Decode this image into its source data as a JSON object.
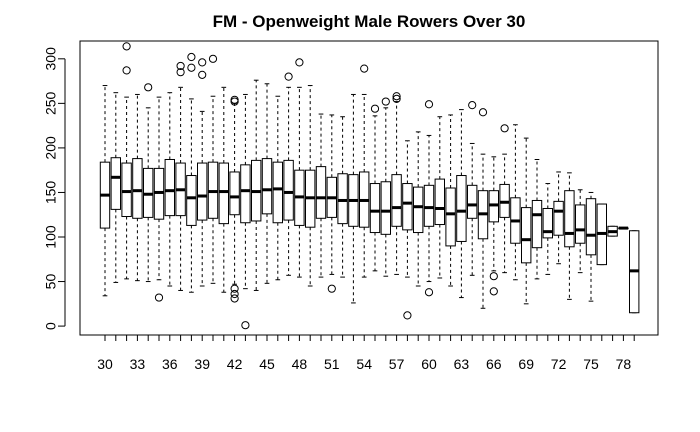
{
  "chart_data": {
    "type": "boxplot",
    "title": "FM - Openweight Male Rowers Over 30",
    "xlabel": "",
    "ylabel": "",
    "ylim": [
      -10,
      320
    ],
    "y_ticks": [
      0,
      50,
      100,
      150,
      200,
      250,
      300
    ],
    "x_tick_labels": [
      "30",
      "33",
      "36",
      "39",
      "42",
      "45",
      "48",
      "51",
      "54",
      "57",
      "60",
      "63",
      "66",
      "69",
      "72",
      "75",
      "78"
    ],
    "grid": false,
    "legend": "none",
    "colors": {
      "stroke": "#000000",
      "box_fill": "#ffffff",
      "background": "#ffffff"
    },
    "boxes": [
      {
        "age": 30,
        "whisker_low": 34,
        "q1": 110,
        "median": 147,
        "q3": 184,
        "whisker_high": 270,
        "outliers": []
      },
      {
        "age": 31,
        "whisker_low": 49,
        "q1": 131,
        "median": 167,
        "q3": 189,
        "whisker_high": 262,
        "outliers": []
      },
      {
        "age": 32,
        "whisker_low": 53,
        "q1": 123,
        "median": 151,
        "q3": 183,
        "whisker_high": 257,
        "outliers": [
          314,
          287
        ]
      },
      {
        "age": 33,
        "whisker_low": 51,
        "q1": 121,
        "median": 152,
        "q3": 188,
        "whisker_high": 260,
        "outliers": []
      },
      {
        "age": 34,
        "whisker_low": 50,
        "q1": 122,
        "median": 148,
        "q3": 177,
        "whisker_high": 245,
        "outliers": [
          268
        ]
      },
      {
        "age": 35,
        "whisker_low": 52,
        "q1": 120,
        "median": 150,
        "q3": 177,
        "whisker_high": 257,
        "outliers": [
          32
        ]
      },
      {
        "age": 36,
        "whisker_low": 45,
        "q1": 124,
        "median": 152,
        "q3": 187,
        "whisker_high": 262,
        "outliers": []
      },
      {
        "age": 37,
        "whisker_low": 40,
        "q1": 124,
        "median": 153,
        "q3": 183,
        "whisker_high": 268,
        "outliers": [
          292,
          285
        ]
      },
      {
        "age": 38,
        "whisker_low": 38,
        "q1": 113,
        "median": 144,
        "q3": 169,
        "whisker_high": 255,
        "outliers": [
          302,
          290
        ]
      },
      {
        "age": 39,
        "whisker_low": 45,
        "q1": 119,
        "median": 146,
        "q3": 183,
        "whisker_high": 241,
        "outliers": [
          296,
          282
        ]
      },
      {
        "age": 40,
        "whisker_low": 48,
        "q1": 121,
        "median": 151,
        "q3": 184,
        "whisker_high": 258,
        "outliers": [
          300
        ]
      },
      {
        "age": 41,
        "whisker_low": 38,
        "q1": 115,
        "median": 151,
        "q3": 183,
        "whisker_high": 268,
        "outliers": []
      },
      {
        "age": 42,
        "whisker_low": 47,
        "q1": 125,
        "median": 145,
        "q3": 173,
        "whisker_high": 250,
        "outliers": [
          254,
          252,
          42,
          36,
          31
        ]
      },
      {
        "age": 43,
        "whisker_low": 42,
        "q1": 116,
        "median": 152,
        "q3": 181,
        "whisker_high": 260,
        "outliers": [
          1
        ]
      },
      {
        "age": 44,
        "whisker_low": 40,
        "q1": 118,
        "median": 151,
        "q3": 186,
        "whisker_high": 276,
        "outliers": []
      },
      {
        "age": 45,
        "whisker_low": 48,
        "q1": 126,
        "median": 153,
        "q3": 188,
        "whisker_high": 272,
        "outliers": []
      },
      {
        "age": 46,
        "whisker_low": 52,
        "q1": 116,
        "median": 154,
        "q3": 184,
        "whisker_high": 258,
        "outliers": []
      },
      {
        "age": 47,
        "whisker_low": 57,
        "q1": 119,
        "median": 150,
        "q3": 186,
        "whisker_high": 268,
        "outliers": [
          280
        ]
      },
      {
        "age": 48,
        "whisker_low": 55,
        "q1": 113,
        "median": 145,
        "q3": 175,
        "whisker_high": 268,
        "outliers": [
          296
        ]
      },
      {
        "age": 49,
        "whisker_low": 45,
        "q1": 111,
        "median": 144,
        "q3": 175,
        "whisker_high": 270,
        "outliers": []
      },
      {
        "age": 50,
        "whisker_low": 55,
        "q1": 121,
        "median": 144,
        "q3": 179,
        "whisker_high": 238,
        "outliers": []
      },
      {
        "age": 51,
        "whisker_low": 58,
        "q1": 122,
        "median": 144,
        "q3": 167,
        "whisker_high": 237,
        "outliers": [
          42
        ]
      },
      {
        "age": 52,
        "whisker_low": 55,
        "q1": 115,
        "median": 141,
        "q3": 171,
        "whisker_high": 235,
        "outliers": []
      },
      {
        "age": 53,
        "whisker_low": 26,
        "q1": 112,
        "median": 141,
        "q3": 170,
        "whisker_high": 260,
        "outliers": []
      },
      {
        "age": 54,
        "whisker_low": 55,
        "q1": 111,
        "median": 141,
        "q3": 173,
        "whisker_high": 260,
        "outliers": [
          289
        ]
      },
      {
        "age": 55,
        "whisker_low": 62,
        "q1": 105,
        "median": 129,
        "q3": 160,
        "whisker_high": 236,
        "outliers": [
          244
        ]
      },
      {
        "age": 56,
        "whisker_low": 56,
        "q1": 103,
        "median": 129,
        "q3": 162,
        "whisker_high": 245,
        "outliers": [
          252
        ]
      },
      {
        "age": 57,
        "whisker_low": 58,
        "q1": 112,
        "median": 133,
        "q3": 170,
        "whisker_high": 252,
        "outliers": [
          258,
          255
        ]
      },
      {
        "age": 58,
        "whisker_low": 55,
        "q1": 108,
        "median": 138,
        "q3": 160,
        "whisker_high": 208,
        "outliers": [
          12
        ]
      },
      {
        "age": 59,
        "whisker_low": 45,
        "q1": 105,
        "median": 134,
        "q3": 156,
        "whisker_high": 218,
        "outliers": []
      },
      {
        "age": 60,
        "whisker_low": 50,
        "q1": 112,
        "median": 133,
        "q3": 158,
        "whisker_high": 214,
        "outliers": [
          249,
          38
        ]
      },
      {
        "age": 61,
        "whisker_low": 54,
        "q1": 114,
        "median": 132,
        "q3": 165,
        "whisker_high": 235,
        "outliers": []
      },
      {
        "age": 62,
        "whisker_low": 45,
        "q1": 90,
        "median": 126,
        "q3": 155,
        "whisker_high": 237,
        "outliers": []
      },
      {
        "age": 63,
        "whisker_low": 32,
        "q1": 95,
        "median": 129,
        "q3": 169,
        "whisker_high": 243,
        "outliers": []
      },
      {
        "age": 64,
        "whisker_low": 57,
        "q1": 121,
        "median": 136,
        "q3": 158,
        "whisker_high": 205,
        "outliers": [
          248
        ]
      },
      {
        "age": 65,
        "whisker_low": 20,
        "q1": 98,
        "median": 126,
        "q3": 152,
        "whisker_high": 193,
        "outliers": [
          240
        ]
      },
      {
        "age": 66,
        "whisker_low": 62,
        "q1": 117,
        "median": 136,
        "q3": 152,
        "whisker_high": 190,
        "outliers": [
          56,
          39
        ]
      },
      {
        "age": 67,
        "whisker_low": 60,
        "q1": 122,
        "median": 139,
        "q3": 159,
        "whisker_high": 193,
        "outliers": [
          222
        ]
      },
      {
        "age": 68,
        "whisker_low": 52,
        "q1": 93,
        "median": 118,
        "q3": 144,
        "whisker_high": 226,
        "outliers": []
      },
      {
        "age": 69,
        "whisker_low": 25,
        "q1": 71,
        "median": 97,
        "q3": 133,
        "whisker_high": 211,
        "outliers": []
      },
      {
        "age": 70,
        "whisker_low": 53,
        "q1": 88,
        "median": 125,
        "q3": 141,
        "whisker_high": 187,
        "outliers": []
      },
      {
        "age": 71,
        "whisker_low": 58,
        "q1": 99,
        "median": 106,
        "q3": 132,
        "whisker_high": 160,
        "outliers": []
      },
      {
        "age": 72,
        "whisker_low": 70,
        "q1": 102,
        "median": 129,
        "q3": 140,
        "whisker_high": 173,
        "outliers": []
      },
      {
        "age": 73,
        "whisker_low": 30,
        "q1": 89,
        "median": 104,
        "q3": 152,
        "whisker_high": 172,
        "outliers": []
      },
      {
        "age": 74,
        "whisker_low": 60,
        "q1": 93,
        "median": 108,
        "q3": 136,
        "whisker_high": 153,
        "outliers": []
      },
      {
        "age": 75,
        "whisker_low": 28,
        "q1": 80,
        "median": 102,
        "q3": 143,
        "whisker_high": 150,
        "outliers": []
      },
      {
        "age": 76,
        "whisker_low": 69,
        "q1": 69,
        "median": 104,
        "q3": 137,
        "whisker_high": 137,
        "outliers": []
      },
      {
        "age": 77,
        "whisker_low": 101,
        "q1": 101,
        "median": 106,
        "q3": 112,
        "whisker_high": 112,
        "outliers": []
      },
      {
        "age": 78,
        "whisker_low": 110,
        "q1": 110,
        "median": 110,
        "q3": 110,
        "whisker_high": 110,
        "outliers": []
      },
      {
        "age": 79,
        "whisker_low": 15,
        "q1": 15,
        "median": 62,
        "q3": 107,
        "whisker_high": 107,
        "outliers": []
      }
    ]
  }
}
